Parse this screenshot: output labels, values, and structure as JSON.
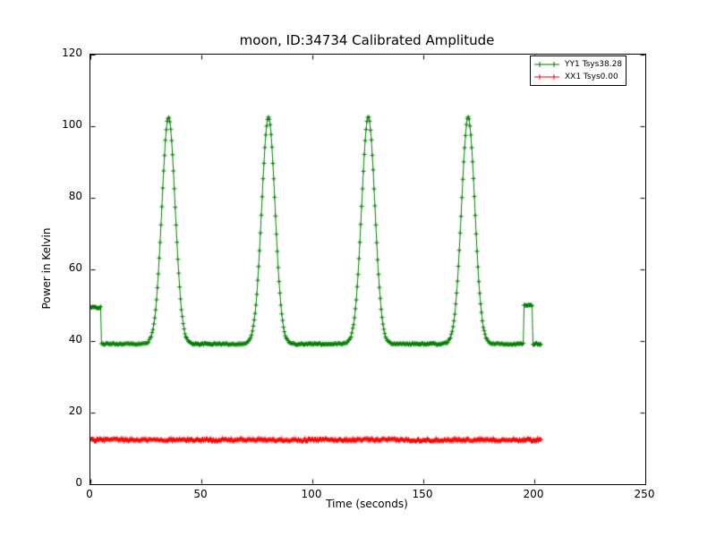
{
  "chart_data": {
    "type": "line",
    "title": "moon, ID:34734 Calibrated Amplitude",
    "xlabel": "Time (seconds)",
    "ylabel": "Power in Kelvin",
    "xlim": [
      0,
      250
    ],
    "ylim": [
      0,
      120
    ],
    "xticks": [
      0,
      50,
      100,
      150,
      200,
      250
    ],
    "yticks": [
      0,
      20,
      40,
      60,
      80,
      100,
      120
    ],
    "grid": false,
    "legend_position": "upper right",
    "axis_color": "#000000",
    "background_color": "#ffffff",
    "series": [
      {
        "name": "YY1 Tsys38.28",
        "color": "#008000",
        "marker": "+",
        "model": "baseline_with_gaussian_peaks",
        "baseline": 39.3,
        "peak_value": 102.6,
        "peak_centers": [
          35,
          80,
          125,
          170
        ],
        "peak_sigma": 3.0,
        "head_segment": {
          "t0": 0,
          "t1": 4.5,
          "value": 49.5
        },
        "tail_segment": {
          "t0": 195,
          "t1": 199,
          "value": 50.0
        },
        "t_start": 0,
        "t_end": 203,
        "sample_step": 0.4,
        "noise": 0.5
      },
      {
        "name": "XX1 Tsys0.00",
        "color": "#ff0000",
        "marker": "+",
        "model": "constant",
        "value": 12.5,
        "t_start": 0,
        "t_end": 203,
        "sample_step": 0.4,
        "noise": 0.9
      }
    ]
  }
}
